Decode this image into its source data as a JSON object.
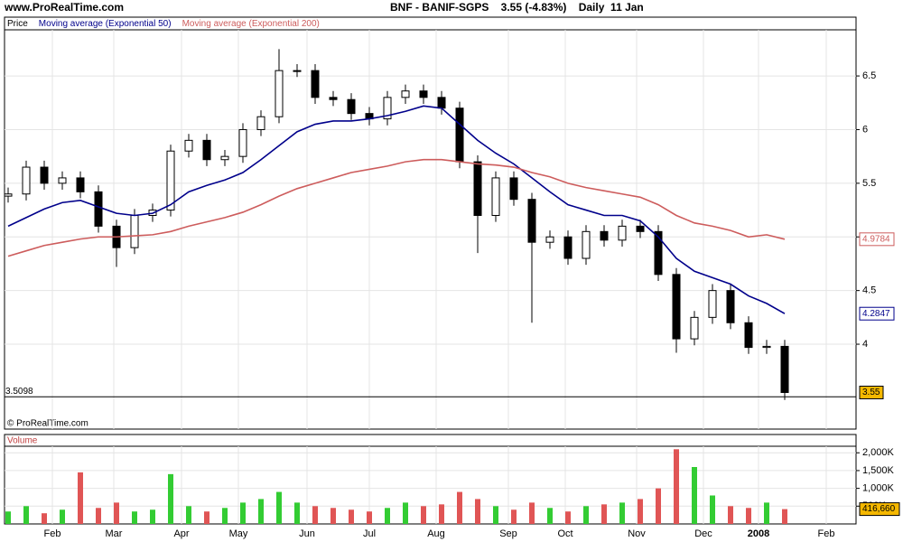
{
  "site": "www.ProRealTime.com",
  "header": "BNF - BANIF-SGPS    3.55 (-4.83%)    Daily  11 Jan",
  "copyright": "© ProRealTime.com",
  "chart_data": [
    {
      "type": "candlestick",
      "candles": {
        "name": "Price",
        "up_color": "#ffffff",
        "down_color": "#000000",
        "open": [
          5.38,
          5.4,
          5.65,
          5.5,
          5.55,
          5.42,
          5.1,
          4.9,
          5.2,
          5.25,
          5.8,
          5.9,
          5.72,
          5.75,
          6.0,
          6.12,
          6.55,
          6.55,
          6.3,
          6.28,
          6.15,
          6.1,
          6.3,
          6.36,
          6.3,
          6.2,
          5.7,
          5.2,
          5.55,
          5.35,
          4.95,
          5.0,
          4.8,
          5.05,
          4.97,
          5.1,
          5.05,
          4.65,
          4.05,
          4.25,
          4.5,
          4.2,
          3.97,
          3.98
        ],
        "high": [
          5.46,
          5.71,
          5.71,
          5.61,
          5.61,
          5.48,
          5.16,
          5.26,
          5.31,
          5.86,
          5.96,
          5.96,
          5.81,
          6.06,
          6.18,
          6.75,
          6.61,
          6.61,
          6.36,
          6.34,
          6.21,
          6.36,
          6.42,
          6.42,
          6.36,
          6.26,
          5.76,
          5.61,
          5.61,
          5.41,
          5.06,
          5.06,
          5.11,
          5.11,
          5.16,
          5.16,
          5.11,
          4.71,
          4.31,
          4.56,
          4.56,
          4.26,
          4.04,
          4.04
        ],
        "low": [
          5.32,
          5.34,
          5.44,
          5.44,
          5.36,
          5.04,
          4.72,
          4.84,
          5.14,
          5.19,
          5.74,
          5.66,
          5.66,
          5.69,
          5.94,
          6.06,
          6.49,
          6.24,
          6.22,
          6.09,
          6.04,
          6.04,
          6.24,
          6.24,
          6.14,
          5.64,
          4.85,
          5.14,
          5.29,
          4.2,
          4.89,
          4.74,
          4.74,
          4.91,
          4.91,
          4.99,
          4.59,
          3.92,
          3.99,
          4.19,
          4.14,
          3.91,
          3.91,
          3.48
        ],
        "close": [
          5.4,
          5.65,
          5.5,
          5.55,
          5.42,
          5.1,
          4.9,
          5.2,
          5.25,
          5.8,
          5.9,
          5.72,
          5.75,
          6.0,
          6.12,
          6.55,
          6.55,
          6.3,
          6.28,
          6.15,
          6.1,
          6.3,
          6.36,
          6.3,
          6.2,
          5.7,
          5.2,
          5.55,
          5.35,
          4.95,
          5.0,
          4.8,
          5.05,
          4.97,
          5.1,
          5.05,
          4.65,
          4.05,
          4.25,
          4.5,
          4.2,
          3.97,
          3.98,
          3.55
        ]
      },
      "series": [
        {
          "name": "Moving average (Exponential 50)",
          "color": "#00008b",
          "values": [
            5.1,
            5.18,
            5.26,
            5.32,
            5.34,
            5.28,
            5.22,
            5.2,
            5.22,
            5.3,
            5.42,
            5.48,
            5.53,
            5.6,
            5.72,
            5.85,
            5.98,
            6.05,
            6.08,
            6.08,
            6.1,
            6.13,
            6.17,
            6.22,
            6.2,
            6.05,
            5.9,
            5.78,
            5.68,
            5.55,
            5.42,
            5.3,
            5.25,
            5.2,
            5.2,
            5.15,
            5.0,
            4.8,
            4.68,
            4.62,
            4.56,
            4.45,
            4.38,
            4.2847
          ]
        },
        {
          "name": "Moving average (Exponential 200)",
          "color": "#cd5c5c",
          "values": [
            4.82,
            4.87,
            4.92,
            4.95,
            4.98,
            5.0,
            5.0,
            5.01,
            5.02,
            5.05,
            5.1,
            5.14,
            5.18,
            5.23,
            5.3,
            5.38,
            5.45,
            5.5,
            5.55,
            5.6,
            5.63,
            5.66,
            5.7,
            5.72,
            5.72,
            5.7,
            5.68,
            5.67,
            5.65,
            5.6,
            5.56,
            5.5,
            5.46,
            5.43,
            5.4,
            5.37,
            5.3,
            5.2,
            5.13,
            5.1,
            5.06,
            5.0,
            5.02,
            4.9784
          ]
        }
      ],
      "hline": 3.5098,
      "xlim": [
        -0.2,
        46.95
      ],
      "ylim": [
        3.209,
        6.93
      ],
      "yticks": [
        4,
        4.5,
        5,
        5.5,
        6,
        6.5
      ],
      "grid": true
    },
    {
      "type": "bar",
      "title": "Volume",
      "up_color": "#33cc33",
      "down_color": "#e05555",
      "values": [
        350000,
        500000,
        300000,
        400000,
        1450000,
        450000,
        600000,
        350000,
        400000,
        1400000,
        500000,
        350000,
        450000,
        600000,
        700000,
        900000,
        600000,
        500000,
        450000,
        400000,
        350000,
        450000,
        600000,
        500000,
        550000,
        900000,
        700000,
        500000,
        400000,
        600000,
        450000,
        350000,
        500000,
        550000,
        600000,
        700000,
        1000000,
        2100000,
        1600000,
        800000,
        500000,
        450000,
        600000,
        416660
      ],
      "value_labels": [
        null,
        null,
        null,
        null,
        null,
        null,
        null,
        null,
        null,
        null,
        null,
        null,
        null,
        null,
        null,
        null,
        null,
        null,
        null,
        null,
        null,
        null,
        null,
        null,
        null,
        null,
        null,
        null,
        null,
        null,
        null,
        null,
        null,
        null,
        null,
        null,
        null,
        null,
        null,
        null,
        null,
        null,
        null,
        "416,660"
      ],
      "xlim": [
        -0.2,
        46.95
      ],
      "xticks": [
        {
          "value": 2.45,
          "label": "Feb"
        },
        {
          "value": 5.85,
          "label": "Mar"
        },
        {
          "value": 9.6,
          "label": "Apr"
        },
        {
          "value": 12.75,
          "label": "May"
        },
        {
          "value": 16.55,
          "label": "Jun"
        },
        {
          "value": 20,
          "label": "Jul"
        },
        {
          "value": 23.7,
          "label": "Aug"
        },
        {
          "value": 27.7,
          "label": "Sep"
        },
        {
          "value": 30.85,
          "label": "Oct"
        },
        {
          "value": 34.8,
          "label": "Nov"
        },
        {
          "value": 38.5,
          "label": "Dec"
        },
        {
          "value": 41.55,
          "label": "2008"
        },
        {
          "value": 45.3,
          "label": "Feb"
        }
      ],
      "ylim": [
        0,
        2184000
      ],
      "yticks": [
        {
          "value": 500000,
          "label": "500K"
        },
        {
          "value": 1000000,
          "label": "1,000K"
        },
        {
          "value": 1500000,
          "label": "1,500K"
        },
        {
          "value": 2000000,
          "label": "2,000K"
        }
      ],
      "grid": true
    }
  ]
}
